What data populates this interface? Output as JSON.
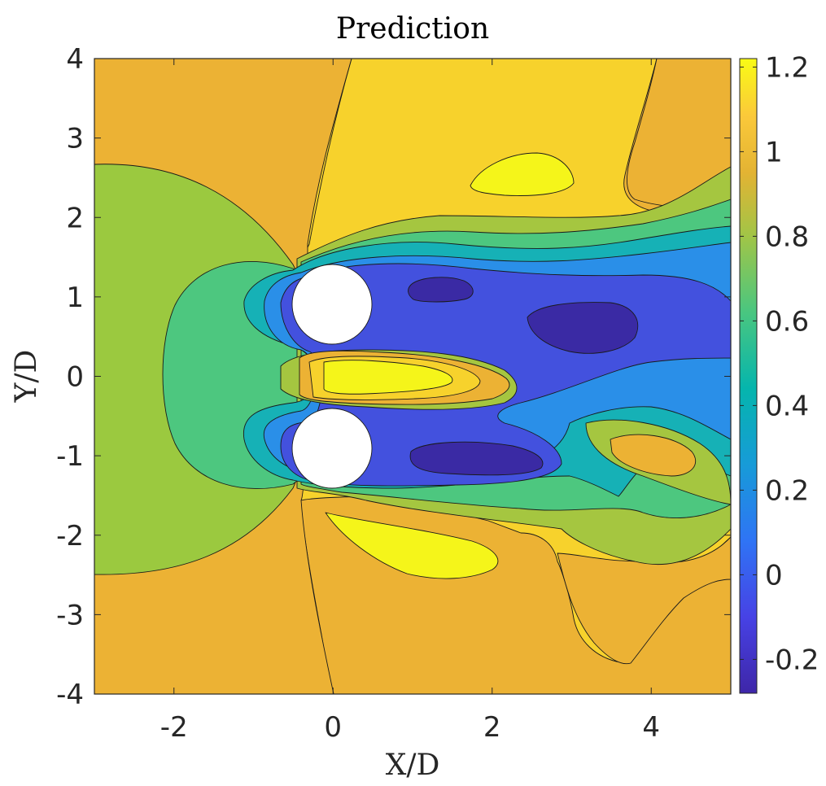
{
  "chart_data": {
    "type": "contourf",
    "title": "Prediction",
    "xlabel": "X/D",
    "ylabel": "Y/D",
    "xlim": [
      -3,
      5
    ],
    "ylim": [
      -4,
      4
    ],
    "clim": [
      -0.28,
      1.22
    ],
    "x_ticks": [
      -2,
      0,
      2,
      4
    ],
    "x_tick_labels": [
      "-2",
      "0",
      "2",
      "4"
    ],
    "y_ticks": [
      -4,
      -3,
      -2,
      -1,
      0,
      1,
      2,
      3,
      4
    ],
    "y_tick_labels": [
      "-4",
      "-3",
      "-2",
      "-1",
      "0",
      "1",
      "2",
      "3",
      "4"
    ],
    "colorbar_ticks": [
      -0.2,
      0,
      0.2,
      0.4,
      0.6,
      0.8,
      1,
      1.2
    ],
    "colorbar_tick_labels": [
      "-0.2",
      "0",
      "0.2",
      "0.4",
      "0.6",
      "0.8",
      "1",
      "1.2"
    ],
    "colormap": "parula",
    "levels": [
      -0.15,
      -0.05,
      0.05,
      0.15,
      0.25,
      0.35,
      0.45,
      0.55,
      0.65,
      0.75,
      0.85,
      0.95,
      1.05,
      1.15
    ],
    "cylinders": [
      {
        "x": 0,
        "y": 0.9,
        "diameter": 1
      },
      {
        "x": 0,
        "y": -0.9,
        "diameter": 1
      }
    ]
  }
}
